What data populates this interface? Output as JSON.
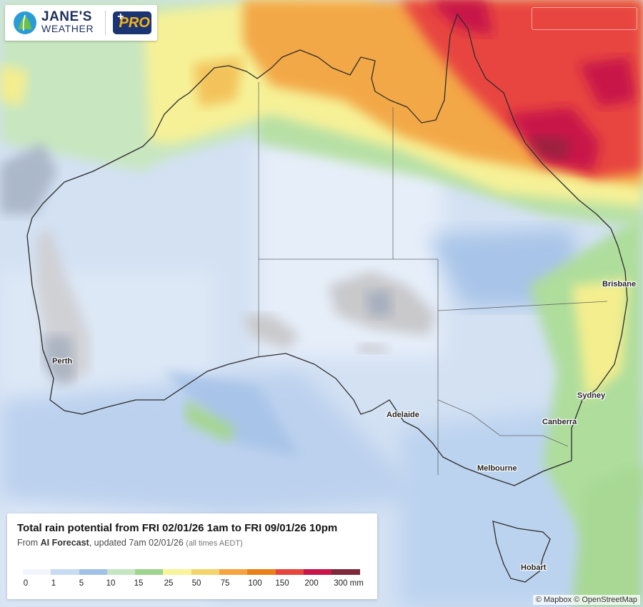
{
  "brand": {
    "name_line1": "JANE'S",
    "name_line2": "WEATHER",
    "badge": "PRO"
  },
  "legend": {
    "title": "Total rain potential from FRI 02/01/26 1am to FRI 09/01/26 10pm",
    "subtitle_from": "From ",
    "subtitle_source": "AI Forecast",
    "subtitle_updated": ", updated 7am 02/01/26",
    "subtitle_note": "(all times AEDT)",
    "ticks": [
      "0",
      "1",
      "5",
      "10",
      "15",
      "25",
      "50",
      "75",
      "100",
      "150",
      "200",
      "300 mm"
    ],
    "colors": [
      "#f2f6fc",
      "#c9dbf3",
      "#a3c0e6",
      "#c6e6c2",
      "#9fd48f",
      "#f7f49a",
      "#f3d46b",
      "#f5a23f",
      "#e98019",
      "#e8453f",
      "#c8164a",
      "#7e2a3a"
    ]
  },
  "cities": [
    "Brisbane",
    "Perth",
    "Sydney",
    "Adelaide",
    "Canberra",
    "Melbourne",
    "Hobart"
  ],
  "attribution": "© Mapbox © OpenStreetMap"
}
